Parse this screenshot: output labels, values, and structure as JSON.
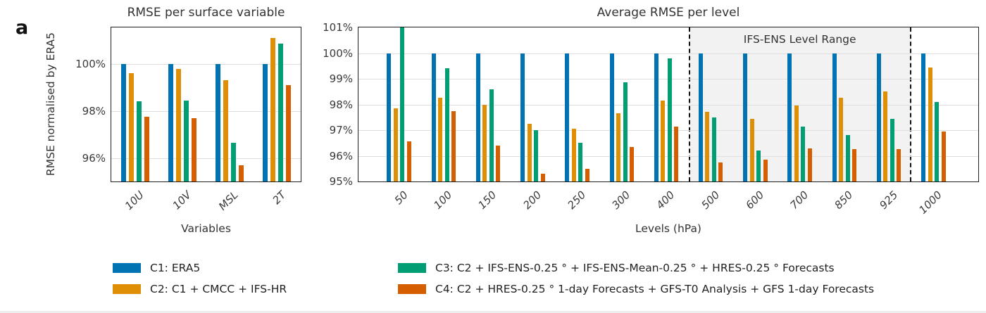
{
  "panel_label": "a",
  "colors": {
    "c1_blue": "#0173b2",
    "c2_orange": "#de8f05",
    "c3_green": "#029e73",
    "c4_red": "#d55e00",
    "grid": "#dedede",
    "frame": "#1f1f1f",
    "shade_bg": "#f2f2f2"
  },
  "chart_data": [
    {
      "id": "surface",
      "type": "bar",
      "title": "RMSE per surface variable",
      "xlabel": "Variables",
      "ylabel": "RMSE normalised by ERA5",
      "ylim": [
        95,
        101.55
      ],
      "yticks": [
        96,
        98,
        100
      ],
      "ytick_suffix": "%",
      "grid": true,
      "categories": [
        "10U",
        "10V",
        "MSL",
        "2T"
      ],
      "series": [
        {
          "name": "C1: ERA5",
          "color": "#0173b2",
          "values": [
            100,
            100,
            100,
            100
          ]
        },
        {
          "name": "C2: C1 + CMCC + IFS-HR",
          "color": "#de8f05",
          "values": [
            99.6,
            99.8,
            99.3,
            101.1
          ]
        },
        {
          "name": "C3: C2 + IFS-ENS-0.25 ° + IFS-ENS-Mean-0.25 ° + HRES-0.25 ° Forecasts",
          "color": "#029e73",
          "values": [
            98.4,
            98.45,
            96.65,
            100.85
          ]
        },
        {
          "name": "C4: C2 + HRES-0.25 ° 1-day Forecasts + GFS-T0 Analysis + GFS 1-day Forecasts",
          "color": "#d55e00",
          "values": [
            97.75,
            97.7,
            95.7,
            99.1
          ]
        }
      ]
    },
    {
      "id": "levels",
      "type": "bar",
      "title": "Average RMSE per level",
      "xlabel": "Levels (hPa)",
      "ylabel": "",
      "ylim": [
        95,
        101
      ],
      "yticks": [
        95,
        96,
        97,
        98,
        99,
        100,
        101
      ],
      "ytick_suffix": "%",
      "grid": true,
      "categories": [
        "50",
        "100",
        "150",
        "200",
        "250",
        "300",
        "400",
        "500",
        "600",
        "700",
        "850",
        "925",
        "1000"
      ],
      "series": [
        {
          "name": "C1: ERA5",
          "color": "#0173b2",
          "values": [
            100,
            100,
            100,
            100,
            100,
            100,
            100,
            100,
            100,
            100,
            100,
            100,
            100
          ]
        },
        {
          "name": "C2: C1 + CMCC + IFS-HR",
          "color": "#de8f05",
          "values": [
            97.85,
            98.25,
            98.0,
            97.25,
            97.05,
            97.65,
            98.15,
            97.7,
            97.45,
            97.95,
            98.25,
            98.5,
            99.45
          ]
        },
        {
          "name": "C3: C2 + IFS-ENS-0.25 ° + IFS-ENS-Mean-0.25 ° + HRES-0.25 ° Forecasts",
          "color": "#029e73",
          "values": [
            101.1,
            99.4,
            98.6,
            97.0,
            96.5,
            98.85,
            99.8,
            97.5,
            96.2,
            97.15,
            96.8,
            97.45,
            98.1
          ]
        },
        {
          "name": "C4: C2 + HRES-0.25 ° 1-day Forecasts + GFS-T0 Analysis + GFS 1-day Forecasts",
          "color": "#d55e00",
          "values": [
            96.55,
            97.75,
            96.4,
            95.3,
            95.5,
            96.35,
            97.15,
            95.75,
            95.85,
            96.3,
            96.25,
            96.25,
            96.95
          ]
        }
      ],
      "annotation": {
        "label": "IFS-ENS Level Range",
        "start_category": "500",
        "end_category": "925"
      }
    }
  ],
  "legend": {
    "items": [
      {
        "label": "C1: ERA5",
        "color": "#0173b2"
      },
      {
        "label": "C2: C1 + CMCC + IFS-HR",
        "color": "#de8f05"
      },
      {
        "label": "C3: C2 + IFS-ENS-0.25 ° + IFS-ENS-Mean-0.25 ° + HRES-0.25 ° Forecasts",
        "color": "#029e73"
      },
      {
        "label": "C4: C2 + HRES-0.25 ° 1-day Forecasts + GFS-T0 Analysis + GFS 1-day Forecasts",
        "color": "#d55e00"
      }
    ]
  }
}
